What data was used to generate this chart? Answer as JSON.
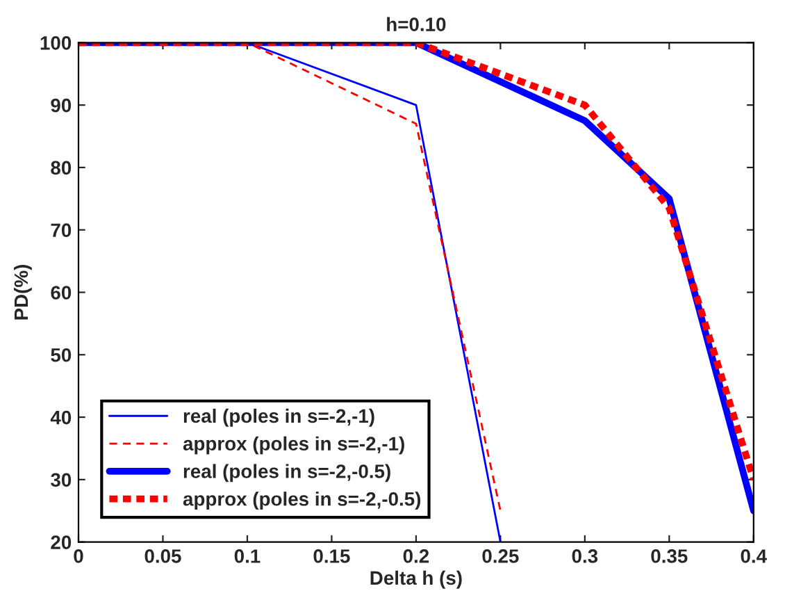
{
  "chart_data": {
    "type": "line",
    "title": "h=0.10",
    "xlabel": "Delta h (s)",
    "ylabel": "PD(%)",
    "xlim": [
      0,
      0.4
    ],
    "ylim": [
      20,
      100
    ],
    "xticks": [
      0,
      0.05,
      0.1,
      0.15,
      0.2,
      0.25,
      0.3,
      0.35,
      0.4
    ],
    "yticks": [
      20,
      30,
      40,
      50,
      60,
      70,
      80,
      90,
      100
    ],
    "grid": false,
    "legend": "bottom left",
    "marker": "none",
    "series": [
      {
        "name": "real (poles in s=-2,-1)",
        "color": "#0000ff",
        "line_style": "solid",
        "x": [
          0,
          0.1,
          0.2,
          0.25
        ],
        "values": [
          100,
          100,
          90,
          20
        ]
      },
      {
        "name": "approx (poles in s=-2,-1)",
        "color": "#ff0000",
        "line_style": "dashed",
        "x": [
          0,
          0.1,
          0.2,
          0.25
        ],
        "values": [
          100,
          100,
          87,
          25
        ]
      },
      {
        "name": "real (poles in s=-2,-0.5)",
        "color": "#0000ff",
        "line_style": "solid",
        "x": [
          0,
          0.1,
          0.2,
          0.3,
          0.35,
          0.4
        ],
        "values": [
          100,
          100,
          100,
          87.5,
          75,
          25
        ]
      },
      {
        "name": "approx (poles in s=-2,-0.5)",
        "color": "#ff0000",
        "line_style": "dashed",
        "x": [
          0,
          0.1,
          0.2,
          0.3,
          0.35,
          0.4
        ],
        "values": [
          100,
          100,
          100,
          90,
          73.5,
          30
        ]
      }
    ]
  }
}
